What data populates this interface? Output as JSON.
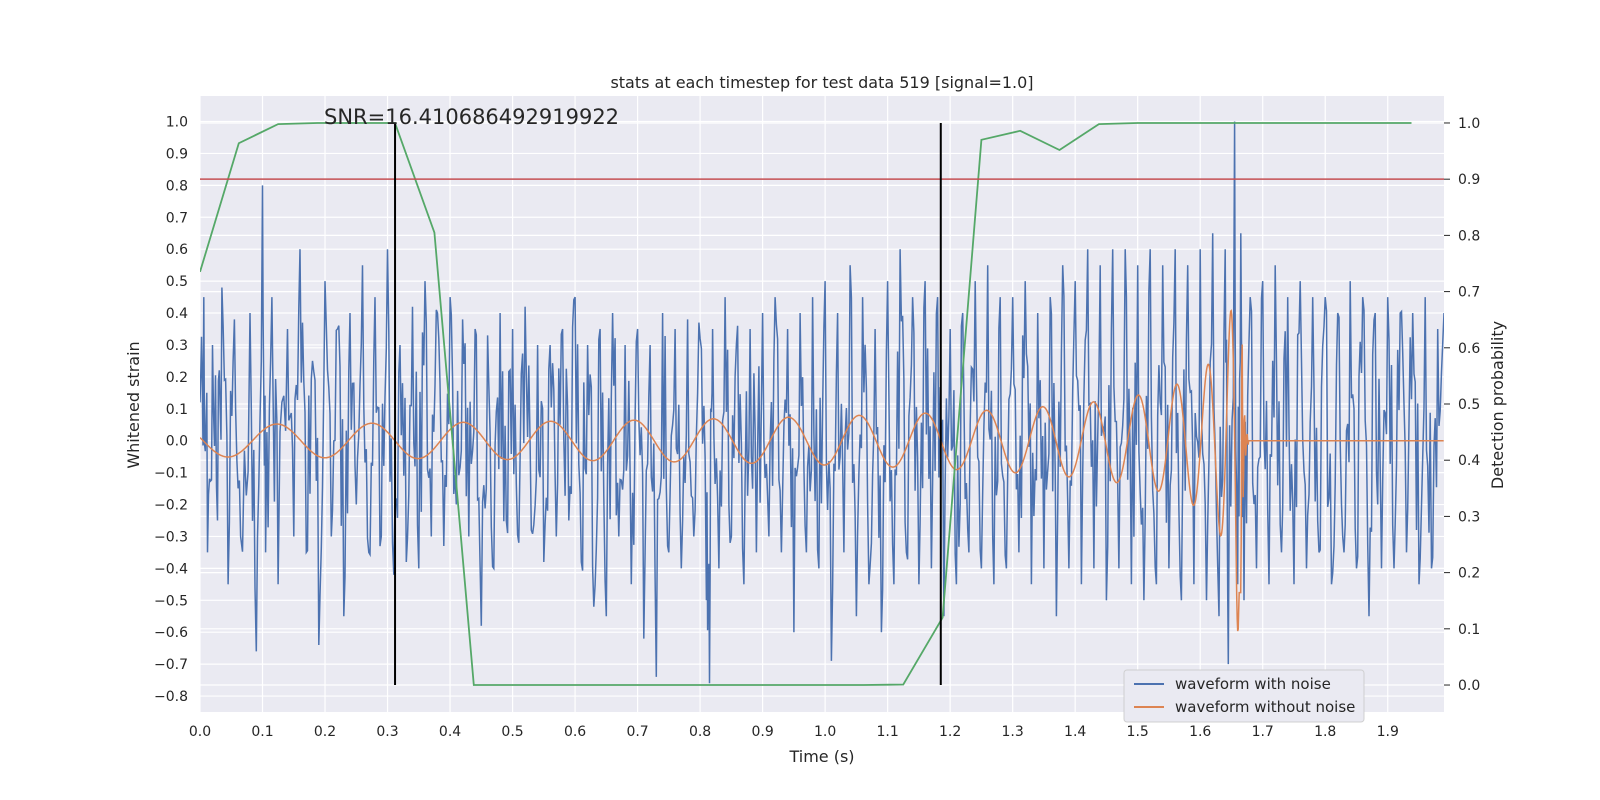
{
  "chart_data": {
    "type": "line",
    "title": "stats at each timestep for test data 519 [signal=1.0]",
    "xlabel": "Time (s)",
    "ylabel": "Whitened strain",
    "y2label": "Detection probability",
    "annotation": "SNR=16.410686492919922",
    "xlim": [
      0.0,
      1.99
    ],
    "ylim": [
      -0.85,
      1.08
    ],
    "y2lim": [
      -0.048,
      1.048
    ],
    "xticks": [
      "0.0",
      "0.1",
      "0.2",
      "0.3",
      "0.4",
      "0.5",
      "0.6",
      "0.7",
      "0.8",
      "0.9",
      "1.0",
      "1.1",
      "1.2",
      "1.3",
      "1.4",
      "1.5",
      "1.6",
      "1.7",
      "1.8",
      "1.9"
    ],
    "yticks": [
      "1.0",
      "0.9",
      "0.8",
      "0.7",
      "0.6",
      "0.5",
      "0.4",
      "0.3",
      "0.2",
      "0.1",
      "0.0",
      "−0.1",
      "−0.2",
      "−0.3",
      "−0.4",
      "−0.5",
      "−0.6",
      "−0.7",
      "−0.8"
    ],
    "y2ticks": [
      "1.0",
      "0.9",
      "0.8",
      "0.7",
      "0.6",
      "0.5",
      "0.4",
      "0.3",
      "0.2",
      "0.1",
      "0.0"
    ],
    "grid": true,
    "legend_position": "lower-right",
    "colors": {
      "background": "#eaeaf2",
      "grid": "#ffffff",
      "noisy": "#4c72b0",
      "clean": "#dd8452",
      "probability": "#55a868",
      "threshold": "#c44e52",
      "markers": "#000000"
    },
    "series": [
      {
        "name": "waveform with noise",
        "axis": "left",
        "description_points": [
          [
            0.0,
            0.12
          ],
          [
            0.006,
            0.45
          ],
          [
            0.012,
            -0.35
          ],
          [
            0.02,
            0.3
          ],
          [
            0.028,
            -0.25
          ],
          [
            0.035,
            0.48
          ],
          [
            0.045,
            -0.45
          ],
          [
            0.055,
            0.38
          ],
          [
            0.065,
            -0.3
          ],
          [
            0.08,
            0.4
          ],
          [
            0.09,
            -0.66
          ],
          [
            0.1,
            0.8
          ],
          [
            0.105,
            -0.35
          ],
          [
            0.115,
            0.45
          ],
          [
            0.125,
            -0.45
          ],
          [
            0.14,
            0.35
          ],
          [
            0.15,
            -0.3
          ],
          [
            0.16,
            0.6
          ],
          [
            0.17,
            -0.35
          ],
          [
            0.18,
            0.25
          ],
          [
            0.19,
            -0.64
          ],
          [
            0.2,
            0.5
          ],
          [
            0.21,
            -0.3
          ],
          [
            0.22,
            0.35
          ],
          [
            0.23,
            -0.55
          ],
          [
            0.24,
            0.4
          ],
          [
            0.25,
            -0.2
          ],
          [
            0.26,
            0.55
          ],
          [
            0.27,
            -0.35
          ],
          [
            0.28,
            0.45
          ],
          [
            0.29,
            -0.3
          ],
          [
            0.3,
            0.6
          ],
          [
            0.31,
            -0.42
          ],
          [
            0.32,
            0.3
          ],
          [
            0.33,
            -0.38
          ],
          [
            0.34,
            0.42
          ],
          [
            0.35,
            -0.4
          ],
          [
            0.36,
            0.5
          ],
          [
            0.37,
            -0.3
          ],
          [
            0.38,
            0.4
          ],
          [
            0.39,
            -0.33
          ],
          [
            0.4,
            0.45
          ],
          [
            0.41,
            -0.2
          ],
          [
            0.42,
            0.38
          ],
          [
            0.43,
            -0.3
          ],
          [
            0.44,
            0.35
          ],
          [
            0.45,
            -0.58
          ],
          [
            0.46,
            0.33
          ],
          [
            0.47,
            -0.4
          ],
          [
            0.48,
            0.4
          ],
          [
            0.49,
            -0.25
          ],
          [
            0.5,
            0.35
          ],
          [
            0.51,
            -0.32
          ],
          [
            0.52,
            0.42
          ],
          [
            0.53,
            -0.28
          ],
          [
            0.54,
            0.3
          ],
          [
            0.55,
            -0.38
          ],
          [
            0.56,
            0.3
          ],
          [
            0.57,
            -0.3
          ],
          [
            0.58,
            0.35
          ],
          [
            0.59,
            -0.25
          ],
          [
            0.6,
            0.45
          ],
          [
            0.61,
            -0.38
          ],
          [
            0.62,
            0.3
          ],
          [
            0.63,
            -0.52
          ],
          [
            0.64,
            0.35
          ],
          [
            0.65,
            -0.55
          ],
          [
            0.66,
            0.4
          ],
          [
            0.67,
            -0.3
          ],
          [
            0.68,
            0.3
          ],
          [
            0.69,
            -0.45
          ],
          [
            0.7,
            0.35
          ],
          [
            0.71,
            -0.62
          ],
          [
            0.72,
            0.3
          ],
          [
            0.73,
            -0.74
          ],
          [
            0.74,
            0.4
          ],
          [
            0.75,
            -0.35
          ],
          [
            0.76,
            0.35
          ],
          [
            0.77,
            -0.4
          ],
          [
            0.78,
            0.38
          ],
          [
            0.79,
            -0.3
          ],
          [
            0.8,
            0.32
          ],
          [
            0.81,
            -0.5
          ],
          [
            0.815,
            -0.76
          ],
          [
            0.82,
            0.35
          ],
          [
            0.83,
            -0.4
          ],
          [
            0.84,
            0.45
          ],
          [
            0.85,
            -0.3
          ],
          [
            0.86,
            0.36
          ],
          [
            0.87,
            -0.45
          ],
          [
            0.88,
            0.35
          ],
          [
            0.89,
            -0.35
          ],
          [
            0.9,
            0.4
          ],
          [
            0.91,
            -0.3
          ],
          [
            0.92,
            0.45
          ],
          [
            0.93,
            -0.35
          ],
          [
            0.94,
            0.35
          ],
          [
            0.95,
            -0.6
          ],
          [
            0.96,
            0.4
          ],
          [
            0.97,
            -0.35
          ],
          [
            0.98,
            0.45
          ],
          [
            0.99,
            -0.4
          ],
          [
            1.0,
            0.5
          ],
          [
            1.01,
            -0.69
          ],
          [
            1.02,
            0.4
          ],
          [
            1.03,
            -0.35
          ],
          [
            1.04,
            0.55
          ],
          [
            1.05,
            -0.55
          ],
          [
            1.06,
            0.45
          ],
          [
            1.07,
            -0.45
          ],
          [
            1.08,
            0.35
          ],
          [
            1.09,
            -0.6
          ],
          [
            1.1,
            0.5
          ],
          [
            1.11,
            -0.45
          ],
          [
            1.12,
            0.6
          ],
          [
            1.13,
            -0.35
          ],
          [
            1.14,
            0.45
          ],
          [
            1.15,
            -0.45
          ],
          [
            1.16,
            0.5
          ],
          [
            1.17,
            -0.4
          ],
          [
            1.18,
            0.45
          ],
          [
            1.19,
            -0.55
          ],
          [
            1.2,
            0.35
          ],
          [
            1.21,
            -0.45
          ],
          [
            1.22,
            0.4
          ],
          [
            1.23,
            -0.35
          ],
          [
            1.24,
            0.5
          ],
          [
            1.25,
            -0.4
          ],
          [
            1.26,
            0.55
          ],
          [
            1.27,
            -0.45
          ],
          [
            1.28,
            0.45
          ],
          [
            1.29,
            -0.4
          ],
          [
            1.3,
            0.45
          ],
          [
            1.31,
            -0.35
          ],
          [
            1.32,
            0.5
          ],
          [
            1.33,
            -0.45
          ],
          [
            1.34,
            0.4
          ],
          [
            1.35,
            -0.4
          ],
          [
            1.36,
            0.45
          ],
          [
            1.37,
            -0.55
          ],
          [
            1.38,
            0.55
          ],
          [
            1.39,
            -0.4
          ],
          [
            1.4,
            0.5
          ],
          [
            1.41,
            -0.45
          ],
          [
            1.42,
            0.6
          ],
          [
            1.43,
            -0.4
          ],
          [
            1.44,
            0.55
          ],
          [
            1.45,
            -0.5
          ],
          [
            1.46,
            0.6
          ],
          [
            1.47,
            -0.4
          ],
          [
            1.48,
            0.6
          ],
          [
            1.49,
            -0.45
          ],
          [
            1.5,
            0.55
          ],
          [
            1.51,
            -0.5
          ],
          [
            1.52,
            0.6
          ],
          [
            1.53,
            -0.45
          ],
          [
            1.54,
            0.55
          ],
          [
            1.55,
            -0.4
          ],
          [
            1.56,
            0.6
          ],
          [
            1.57,
            -0.5
          ],
          [
            1.58,
            0.55
          ],
          [
            1.59,
            -0.45
          ],
          [
            1.6,
            0.6
          ],
          [
            1.61,
            -0.5
          ],
          [
            1.62,
            0.65
          ],
          [
            1.63,
            -0.55
          ],
          [
            1.64,
            0.6
          ],
          [
            1.645,
            -0.7
          ],
          [
            1.655,
            1.0
          ],
          [
            1.66,
            -0.45
          ],
          [
            1.665,
            0.65
          ],
          [
            1.67,
            -0.5
          ],
          [
            1.68,
            0.45
          ],
          [
            1.69,
            -0.4
          ],
          [
            1.7,
            0.5
          ],
          [
            1.71,
            -0.45
          ],
          [
            1.72,
            0.55
          ],
          [
            1.73,
            -0.35
          ],
          [
            1.74,
            0.45
          ],
          [
            1.75,
            -0.45
          ],
          [
            1.76,
            0.5
          ],
          [
            1.77,
            -0.4
          ],
          [
            1.78,
            0.45
          ],
          [
            1.79,
            -0.35
          ],
          [
            1.8,
            0.45
          ],
          [
            1.81,
            -0.45
          ],
          [
            1.82,
            0.4
          ],
          [
            1.83,
            -0.35
          ],
          [
            1.84,
            0.5
          ],
          [
            1.85,
            -0.4
          ],
          [
            1.86,
            0.45
          ],
          [
            1.87,
            -0.55
          ],
          [
            1.88,
            0.4
          ],
          [
            1.89,
            -0.4
          ],
          [
            1.9,
            0.45
          ],
          [
            1.91,
            -0.4
          ],
          [
            1.92,
            0.4
          ],
          [
            1.93,
            -0.35
          ],
          [
            1.94,
            0.4
          ],
          [
            1.95,
            -0.45
          ],
          [
            1.96,
            0.45
          ],
          [
            1.97,
            -0.4
          ],
          [
            1.98,
            0.35
          ],
          [
            1.99,
            0.4
          ]
        ]
      },
      {
        "name": "waveform without noise",
        "axis": "left",
        "model": "chirp: amplitude grows from about 0.05 to about 0.6, frequency increases, peaks near t=1.665 s, minimum about -0.66, flat at 0.0 after about t=1.68 s"
      },
      {
        "name": "",
        "axis": "right",
        "x": [
          0.0,
          0.062,
          0.125,
          0.188,
          0.25,
          0.312,
          0.375,
          0.438,
          0.5,
          0.562,
          0.625,
          0.688,
          0.75,
          0.812,
          0.875,
          0.938,
          1.0,
          1.062,
          1.125,
          1.188,
          1.25,
          1.312,
          1.375,
          1.438,
          1.5,
          1.562,
          1.625,
          1.688,
          1.75,
          1.812,
          1.875,
          1.938
        ],
        "y": [
          0.735,
          0.964,
          0.998,
          1.0,
          1.0,
          1.0,
          0.805,
          0.0,
          0.0,
          0.0,
          0.0,
          0.0,
          0.0,
          0.0,
          0.0,
          0.0,
          0.0,
          0.0,
          0.001,
          0.12,
          0.97,
          0.986,
          0.952,
          0.998,
          1.0,
          1.0,
          1.0,
          1.0,
          1.0,
          1.0,
          1.0,
          1.0
        ]
      },
      {
        "name": "",
        "axis": "right",
        "type": "hline",
        "y": 0.9
      }
    ],
    "vlines": [
      0.312,
      1.185
    ],
    "legend": [
      "waveform with noise",
      "waveform without noise"
    ]
  }
}
